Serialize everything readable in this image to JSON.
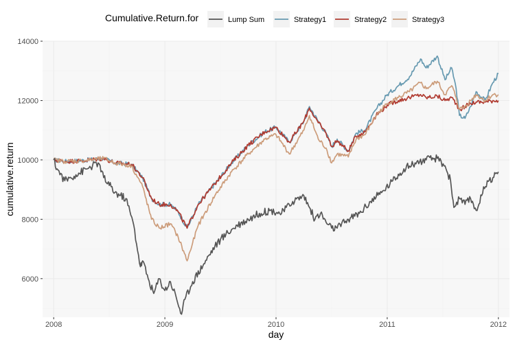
{
  "chart_data": {
    "type": "line",
    "title": "",
    "xlabel": "day",
    "ylabel": "cumulative.return",
    "legend_title": "Cumulative.Return.for",
    "legend_position": "top",
    "grid": true,
    "xlim": [
      2007.9,
      2012.1
    ],
    "ylim": [
      4700,
      14000
    ],
    "x_ticks": [
      2008,
      2009,
      2010,
      2011,
      2012
    ],
    "x_tick_labels": [
      "2008",
      "2009",
      "2010",
      "2011",
      "2012"
    ],
    "y_ticks": [
      6000,
      8000,
      10000,
      12000,
      14000
    ],
    "y_tick_labels": [
      "6000",
      "8000",
      "10000",
      "12000",
      "14000"
    ],
    "colors": {
      "panel": "#f7f7f7",
      "grid_major": "#ebebeb",
      "grid_minor": "#f2f2f2",
      "lump_sum": "#555555",
      "strategy1": "#6699b0",
      "strategy2": "#b03a30",
      "strategy3": "#cc9c7a"
    },
    "series": [
      {
        "name": "Strategy1",
        "color": "#6699b0",
        "x": [
          2008,
          2008.1,
          2008.25,
          2008.45,
          2008.55,
          2008.7,
          2008.8,
          2008.88,
          2008.95,
          2009.05,
          2009.12,
          2009.2,
          2009.3,
          2009.45,
          2009.6,
          2009.75,
          2009.9,
          2010.0,
          2010.12,
          2010.25,
          2010.3,
          2010.38,
          2010.45,
          2010.5,
          2010.55,
          2010.65,
          2010.72,
          2010.8,
          2010.9,
          2011.0,
          2011.1,
          2011.2,
          2011.3,
          2011.35,
          2011.45,
          2011.52,
          2011.58,
          2011.62,
          2011.65,
          2011.7,
          2011.75,
          2011.8,
          2011.88,
          2011.95,
          2012.0
        ],
        "y": [
          10000,
          9950,
          9980,
          10050,
          9900,
          9850,
          9400,
          8700,
          8500,
          8500,
          8250,
          7700,
          8500,
          9200,
          9900,
          10500,
          10950,
          11100,
          10600,
          11300,
          11800,
          11300,
          10900,
          10450,
          10700,
          10300,
          10900,
          11000,
          11700,
          12200,
          12500,
          12800,
          13400,
          13100,
          13500,
          12700,
          13100,
          12400,
          11500,
          11400,
          11800,
          12300,
          12000,
          12600,
          12900
        ]
      },
      {
        "name": "Strategy2",
        "color": "#b03a30",
        "x": [
          2008,
          2008.1,
          2008.25,
          2008.45,
          2008.55,
          2008.7,
          2008.8,
          2008.88,
          2008.95,
          2009.05,
          2009.12,
          2009.2,
          2009.3,
          2009.45,
          2009.6,
          2009.75,
          2009.9,
          2010.0,
          2010.12,
          2010.25,
          2010.3,
          2010.38,
          2010.45,
          2010.5,
          2010.55,
          2010.65,
          2010.72,
          2010.8,
          2010.9,
          2011.0,
          2011.1,
          2011.2,
          2011.3,
          2011.35,
          2011.45,
          2011.52,
          2011.58,
          2011.62,
          2011.65,
          2011.7,
          2011.75,
          2011.8,
          2011.88,
          2011.95,
          2012.0
        ],
        "y": [
          10000,
          9950,
          9970,
          10050,
          9900,
          9850,
          9400,
          8700,
          8500,
          8500,
          8250,
          7700,
          8500,
          9200,
          9900,
          10500,
          10950,
          11100,
          10600,
          11300,
          11750,
          11250,
          10900,
          10450,
          10650,
          10300,
          10800,
          10950,
          11500,
          11850,
          12000,
          12100,
          12200,
          12100,
          12150,
          12000,
          12100,
          11900,
          11700,
          11800,
          11900,
          11950,
          11950,
          12000,
          12000
        ]
      },
      {
        "name": "Strategy3",
        "color": "#cc9c7a",
        "x": [
          2008,
          2008.1,
          2008.25,
          2008.45,
          2008.55,
          2008.7,
          2008.8,
          2008.88,
          2008.95,
          2009.05,
          2009.12,
          2009.2,
          2009.3,
          2009.45,
          2009.6,
          2009.75,
          2009.9,
          2010.0,
          2010.12,
          2010.25,
          2010.3,
          2010.38,
          2010.45,
          2010.5,
          2010.55,
          2010.65,
          2010.72,
          2010.8,
          2010.9,
          2011.0,
          2011.1,
          2011.2,
          2011.3,
          2011.35,
          2011.45,
          2011.52,
          2011.58,
          2011.62,
          2011.65,
          2011.7,
          2011.75,
          2011.8,
          2011.88,
          2011.95,
          2012.0
        ],
        "y": [
          10000,
          9950,
          9970,
          10050,
          9900,
          9800,
          9100,
          8000,
          7700,
          7850,
          7400,
          6600,
          7800,
          8800,
          9600,
          10200,
          10700,
          10850,
          10200,
          11000,
          11500,
          10700,
          10400,
          9900,
          10200,
          10100,
          10700,
          10850,
          11500,
          11900,
          12100,
          12300,
          12600,
          12400,
          12650,
          12200,
          12500,
          12100,
          11700,
          11800,
          12000,
          12200,
          12000,
          12200,
          12200
        ]
      },
      {
        "name": "Lump Sum",
        "color": "#555555",
        "x": [
          2008,
          2008.03,
          2008.1,
          2008.2,
          2008.3,
          2008.4,
          2008.45,
          2008.55,
          2008.65,
          2008.72,
          2008.78,
          2008.8,
          2008.85,
          2008.9,
          2008.95,
          2009.0,
          2009.05,
          2009.1,
          2009.15,
          2009.18,
          2009.25,
          2009.35,
          2009.45,
          2009.55,
          2009.65,
          2009.75,
          2009.85,
          2009.95,
          2010.05,
          2010.15,
          2010.25,
          2010.3,
          2010.35,
          2010.4,
          2010.45,
          2010.5,
          2010.55,
          2010.65,
          2010.75,
          2010.85,
          2010.95,
          2011.05,
          2011.15,
          2011.25,
          2011.35,
          2011.45,
          2011.52,
          2011.57,
          2011.6,
          2011.65,
          2011.7,
          2011.75,
          2011.8,
          2011.85,
          2011.9,
          2011.95,
          2012.0
        ],
        "y": [
          10000,
          9700,
          9300,
          9500,
          9700,
          9900,
          9400,
          8900,
          8700,
          7800,
          6400,
          6600,
          6000,
          5500,
          6000,
          5600,
          5900,
          5400,
          4800,
          5300,
          5900,
          6500,
          7100,
          7500,
          7800,
          8000,
          8200,
          8300,
          8200,
          8600,
          8800,
          8400,
          8000,
          8200,
          7900,
          7700,
          7700,
          8000,
          8200,
          8600,
          8900,
          9300,
          9700,
          9900,
          10000,
          10050,
          9800,
          9300,
          8400,
          8700,
          8500,
          8700,
          8300,
          8800,
          9300,
          9400,
          9600
        ]
      }
    ]
  }
}
